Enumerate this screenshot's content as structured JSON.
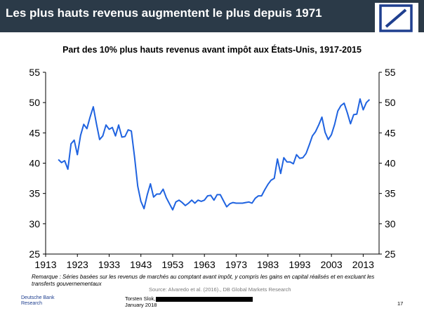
{
  "header": {
    "title": "Les plus hauts revenus augmentent le plus depuis 1971",
    "logo": "deutsche-bank-logo",
    "colors": {
      "background": "#2b3a48",
      "logo": "#1f3f8f"
    }
  },
  "chart_data": {
    "type": "line",
    "title": "Part des 10% plus hauts revenus avant impôt aux États-Unis, 1917-2015",
    "xlabel": "",
    "ylabel": "",
    "xlim": [
      1913,
      2018
    ],
    "ylim": [
      25,
      55
    ],
    "x_ticks": [
      1913,
      1923,
      1933,
      1943,
      1953,
      1963,
      1973,
      1983,
      1993,
      2003,
      2013
    ],
    "y_ticks": [
      25,
      30,
      35,
      40,
      45,
      50,
      55
    ],
    "grid": false,
    "line_color": "#1f63e0",
    "series": [
      {
        "x": [
          1917,
          1918,
          1919,
          1920,
          1921,
          1922,
          1923,
          1924,
          1925,
          1926,
          1927,
          1928,
          1929,
          1930,
          1931,
          1932,
          1933,
          1934,
          1935,
          1936,
          1937,
          1938,
          1939,
          1940,
          1941,
          1942,
          1943,
          1944,
          1945,
          1946,
          1947,
          1948,
          1949,
          1950,
          1951,
          1952,
          1953,
          1954,
          1955,
          1956,
          1957,
          1958,
          1959,
          1960,
          1961,
          1962,
          1963,
          1964,
          1965,
          1966,
          1967,
          1968,
          1969,
          1970,
          1971,
          1972,
          1973,
          1974,
          1975,
          1976,
          1977,
          1978,
          1979,
          1980,
          1981,
          1982,
          1983,
          1984,
          1985,
          1986,
          1987,
          1988,
          1989,
          1990,
          1991,
          1992,
          1993,
          1994,
          1995,
          1996,
          1997,
          1998,
          1999,
          2000,
          2001,
          2002,
          2003,
          2004,
          2005,
          2006,
          2007,
          2008,
          2009,
          2010,
          2011,
          2012,
          2013,
          2014,
          2015
        ],
        "y": [
          40.6,
          40.1,
          40.4,
          39.0,
          43.2,
          43.8,
          41.4,
          44.6,
          46.4,
          45.7,
          47.6,
          49.3,
          46.5,
          43.9,
          44.5,
          46.3,
          45.6,
          45.9,
          44.5,
          46.3,
          44.3,
          44.4,
          45.5,
          45.3,
          41.0,
          36.2,
          33.7,
          32.5,
          34.8,
          36.6,
          34.4,
          34.9,
          34.9,
          35.7,
          34.3,
          33.3,
          32.3,
          33.6,
          33.9,
          33.5,
          33.0,
          33.4,
          33.9,
          33.4,
          33.9,
          33.7,
          33.9,
          34.6,
          34.7,
          33.9,
          34.8,
          34.8,
          33.8,
          32.8,
          33.3,
          33.5,
          33.4,
          33.4,
          33.4,
          33.5,
          33.6,
          33.4,
          34.2,
          34.6,
          34.6,
          35.6,
          36.5,
          37.2,
          37.5,
          40.7,
          38.3,
          40.9,
          40.2,
          40.2,
          39.9,
          41.4,
          40.8,
          40.9,
          41.6,
          43.0,
          44.5,
          45.2,
          46.3,
          47.6,
          45.1,
          43.9,
          44.7,
          46.4,
          48.6,
          49.5,
          49.9,
          48.3,
          46.5,
          48.0,
          48.1,
          50.6,
          48.8,
          50.0,
          50.5
        ]
      }
    ]
  },
  "footnote": {
    "remark": "Remarque : Séries basées sur les revenus de marchés au comptant avant impôt, y compris les gains en capital réalisés et en excluant les transferts gouvernementaux",
    "source": "Source:  Alvaredo et al. (2016)., DB Global Markets Research"
  },
  "footer": {
    "brand_line1": "Deutsche Bank",
    "brand_line2": "Research",
    "author": "Torsten Slok,",
    "date": "January 2018",
    "page": "17"
  }
}
